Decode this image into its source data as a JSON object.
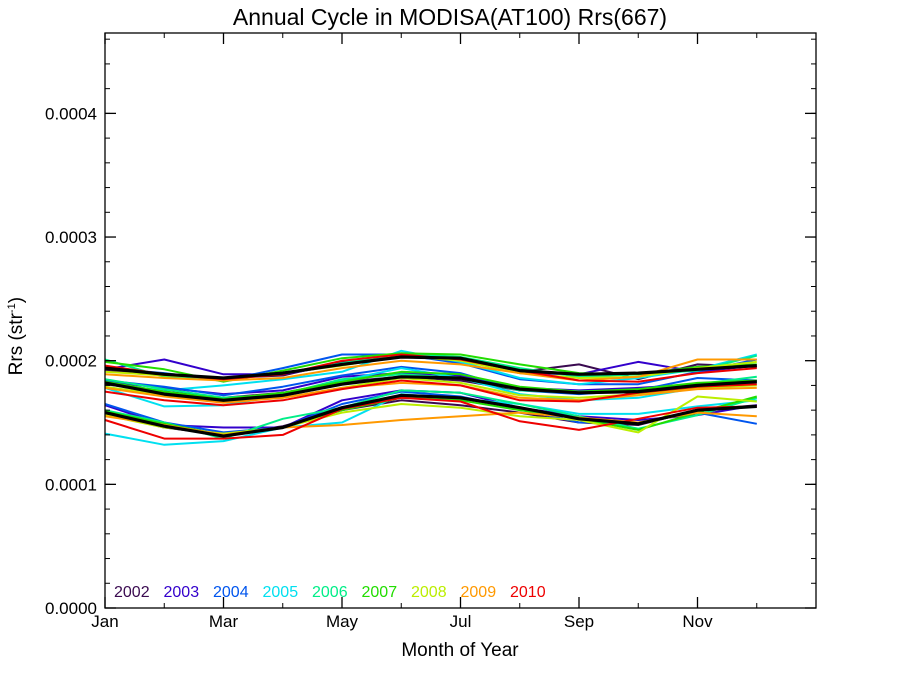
{
  "chart_data": {
    "type": "line",
    "title": "Annual Cycle in MODISA(AT100) Rrs(667)",
    "xlabel": "Month of Year",
    "ylabel_base": "Rrs (str",
    "ylabel_exp": "-1",
    "ylabel_close": ")",
    "x_ticks": [
      "Jan",
      "Mar",
      "May",
      "Jul",
      "Sep",
      "Nov"
    ],
    "y_ticks": [
      "0.0000",
      "0.0001",
      "0.0002",
      "0.0003",
      "0.0004"
    ],
    "xlim": [
      1,
      13
    ],
    "ylim": [
      0,
      0.000465
    ],
    "grid": false,
    "legend_position": "bottom-left",
    "months": [
      1,
      2,
      3,
      4,
      5,
      6,
      7,
      8,
      9,
      10,
      11,
      12
    ],
    "series": [
      {
        "name": "2002",
        "color": "#3a0a50",
        "upper": [
          0.000192,
          0.000188,
          0.000186,
          0.000188,
          0.000199,
          0.000203,
          0.000202,
          0.000191,
          0.000197,
          0.000185,
          0.000197,
          0.000195
        ],
        "mean": [
          0.000181,
          0.000175,
          0.00017,
          0.000174,
          0.000183,
          0.000187,
          0.000184,
          0.000176,
          0.000175,
          0.000174,
          0.00018,
          0.000183
        ],
        "lower": [
          0.000157,
          0.000146,
          0.00014,
          0.000147,
          0.00016,
          0.000168,
          0.000164,
          0.000158,
          0.00015,
          0.000148,
          0.00016,
          0.000164
        ]
      },
      {
        "name": "2003",
        "color": "#3300cc",
        "upper": [
          0.000193,
          0.000201,
          0.000189,
          0.000189,
          0.000197,
          0.000203,
          0.000201,
          0.00019,
          0.000189,
          0.000199,
          0.000191,
          0.000196
        ],
        "mean": [
          0.000183,
          0.000178,
          0.000173,
          0.000176,
          0.000187,
          0.00019,
          0.000188,
          0.000178,
          0.000176,
          0.000178,
          0.000181,
          0.000184
        ],
        "lower": [
          0.000164,
          0.000148,
          0.000146,
          0.000146,
          0.000168,
          0.000176,
          0.000174,
          0.000162,
          0.000155,
          0.000152,
          0.000156,
          0.000164
        ]
      },
      {
        "name": "2004",
        "color": "#0055ee",
        "upper": [
          0.000194,
          0.00019,
          0.000184,
          0.000194,
          0.000205,
          0.000205,
          0.000198,
          0.000185,
          0.000181,
          0.000181,
          0.000191,
          0.000201
        ],
        "mean": [
          0.000184,
          0.000179,
          0.000172,
          0.000179,
          0.000188,
          0.000195,
          0.00019,
          0.000176,
          0.000173,
          0.000176,
          0.000186,
          0.000184
        ],
        "lower": [
          0.000165,
          0.00015,
          0.000142,
          0.000146,
          0.000165,
          0.000175,
          0.000171,
          0.000161,
          0.00015,
          0.00015,
          0.000158,
          0.000149
        ]
      },
      {
        "name": "2005",
        "color": "#00e0f0",
        "upper": [
          0.000181,
          0.000176,
          0.00018,
          0.000185,
          0.000191,
          0.000208,
          0.000199,
          0.000186,
          0.000181,
          0.000186,
          0.000193,
          0.000205
        ],
        "mean": [
          0.000178,
          0.000163,
          0.000164,
          0.000172,
          0.000184,
          0.000194,
          0.000186,
          0.000173,
          0.000168,
          0.00017,
          0.000178,
          0.000182
        ],
        "lower": [
          0.000141,
          0.000132,
          0.000135,
          0.000146,
          0.00015,
          0.000173,
          0.000169,
          0.000165,
          0.000157,
          0.000157,
          0.000163,
          0.000168
        ]
      },
      {
        "name": "2006",
        "color": "#00ee88",
        "upper": [
          0.000201,
          0.000187,
          0.000185,
          0.00019,
          0.000198,
          0.000206,
          0.000203,
          0.000194,
          0.000187,
          0.000189,
          0.000192,
          0.000204
        ],
        "mean": [
          0.000185,
          0.000177,
          0.00017,
          0.000173,
          0.000185,
          0.000189,
          0.000186,
          0.000176,
          0.000174,
          0.000175,
          0.000181,
          0.000187
        ],
        "lower": [
          0.00016,
          0.00015,
          0.000137,
          0.000153,
          0.000162,
          0.000176,
          0.000174,
          0.000165,
          0.000155,
          0.000145,
          0.000156,
          0.00017
        ]
      },
      {
        "name": "2007",
        "color": "#22dd00",
        "upper": [
          0.000199,
          0.000193,
          0.000183,
          0.000192,
          0.000202,
          0.000206,
          0.000205,
          0.000197,
          0.00019,
          0.000189,
          0.000195,
          0.000197
        ],
        "mean": [
          0.000183,
          0.000175,
          0.000169,
          0.000174,
          0.000183,
          0.000191,
          0.000189,
          0.000179,
          0.000175,
          0.000177,
          0.000182,
          0.000184
        ],
        "lower": [
          0.000159,
          0.000149,
          0.00014,
          0.000146,
          0.00016,
          0.00017,
          0.000168,
          0.00016,
          0.000153,
          0.000144,
          0.000158,
          0.000171
        ]
      },
      {
        "name": "2008",
        "color": "#bbee00",
        "upper": [
          0.000191,
          0.000188,
          0.000186,
          0.00019,
          0.000196,
          0.000204,
          0.0002,
          0.00019,
          0.000186,
          0.000187,
          0.000194,
          0.000199
        ],
        "mean": [
          0.000179,
          0.000172,
          0.000167,
          0.00017,
          0.000178,
          0.000186,
          0.000182,
          0.000172,
          0.00017,
          0.000173,
          0.000178,
          0.00018
        ],
        "lower": [
          0.000156,
          0.000146,
          0.000141,
          0.000146,
          0.000158,
          0.000165,
          0.000162,
          0.000155,
          0.000152,
          0.000142,
          0.000171,
          0.000167
        ]
      },
      {
        "name": "2009",
        "color": "#ff9900",
        "upper": [
          0.000189,
          0.000186,
          0.000184,
          0.000186,
          0.000194,
          0.0002,
          0.000197,
          0.00019,
          0.000184,
          0.000187,
          0.000201,
          0.000201
        ],
        "mean": [
          0.000178,
          0.000171,
          0.000166,
          0.00017,
          0.000178,
          0.000182,
          0.00018,
          0.00017,
          0.000168,
          0.000172,
          0.000177,
          0.000178
        ],
        "lower": [
          0.000155,
          0.000148,
          0.00014,
          0.000146,
          0.000148,
          0.000152,
          0.000155,
          0.000158,
          0.000154,
          0.00015,
          0.000158,
          0.000155
        ]
      },
      {
        "name": "2010",
        "color": "#ee0000",
        "upper": [
          0.000196,
          0.000189,
          0.000185,
          0.000189,
          0.0002,
          0.000205,
          0.000201,
          0.000192,
          0.000184,
          0.000183,
          0.00019,
          0.000194
        ],
        "mean": [
          0.000175,
          0.000168,
          0.000164,
          0.000168,
          0.000177,
          0.000184,
          0.00018,
          0.000168,
          0.000167,
          0.000174,
          0.000179,
          0.000181
        ],
        "lower": [
          0.000152,
          0.000137,
          0.000137,
          0.00014,
          0.000161,
          0.00017,
          0.000167,
          0.000151,
          0.000144,
          0.000153,
          0.000162,
          0.000163
        ]
      }
    ],
    "overall": {
      "color": "#000000",
      "upper": [
        0.000194,
        0.000189,
        0.000186,
        0.00019,
        0.000197,
        0.000203,
        0.000202,
        0.000192,
        0.000189,
        0.00019,
        0.000193,
        0.000196
      ],
      "mean": [
        0.000182,
        0.000173,
        0.000168,
        0.000172,
        0.000181,
        0.000187,
        0.000186,
        0.000177,
        0.000174,
        0.000175,
        0.00018,
        0.000183
      ],
      "lower": [
        0.000158,
        0.000147,
        0.000139,
        0.000146,
        0.000162,
        0.000172,
        0.00017,
        0.000162,
        0.000153,
        0.000149,
        0.00016,
        0.000163
      ]
    }
  }
}
